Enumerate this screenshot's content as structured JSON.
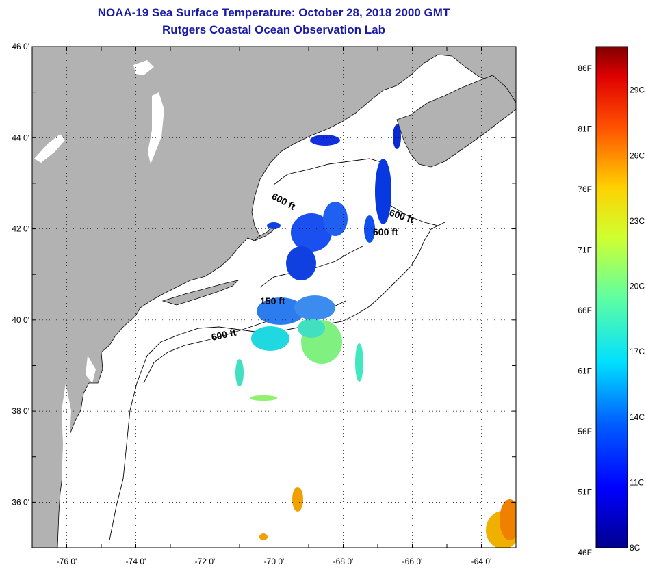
{
  "title": "NOAA-19 Sea Surface Temperature:  October 28, 2018 2000 GMT",
  "subtitle": "Rutgers Coastal Ocean Observation Lab",
  "axes": {
    "x_ticks": [
      "-76 0'",
      "-74 0'",
      "-72 0'",
      "-70 0'",
      "-68 0'",
      "-66 0'",
      "-64 0'"
    ],
    "y_ticks": [
      "46 0'",
      "44 0'",
      "42 0'",
      "40 0'",
      "38 0'",
      "36 0'"
    ],
    "x_range": [
      -77,
      -63
    ],
    "y_range": [
      35,
      46
    ]
  },
  "contour_labels": [
    "600 ft",
    "600 ft",
    "600 ft",
    "150 ft",
    "600 ft"
  ],
  "colorbar": {
    "fahrenheit": [
      "86F",
      "81F",
      "76F",
      "71F",
      "66F",
      "61F",
      "56F",
      "51F",
      "46F"
    ],
    "celsius": [
      "29C",
      "26C",
      "23C",
      "20C",
      "17C",
      "14C",
      "11C",
      "8C"
    ],
    "range_c": [
      8,
      31
    ]
  },
  "colors": {
    "land": "#b2b2b2",
    "water": "#ffffff",
    "title": "#1a1aa8"
  }
}
